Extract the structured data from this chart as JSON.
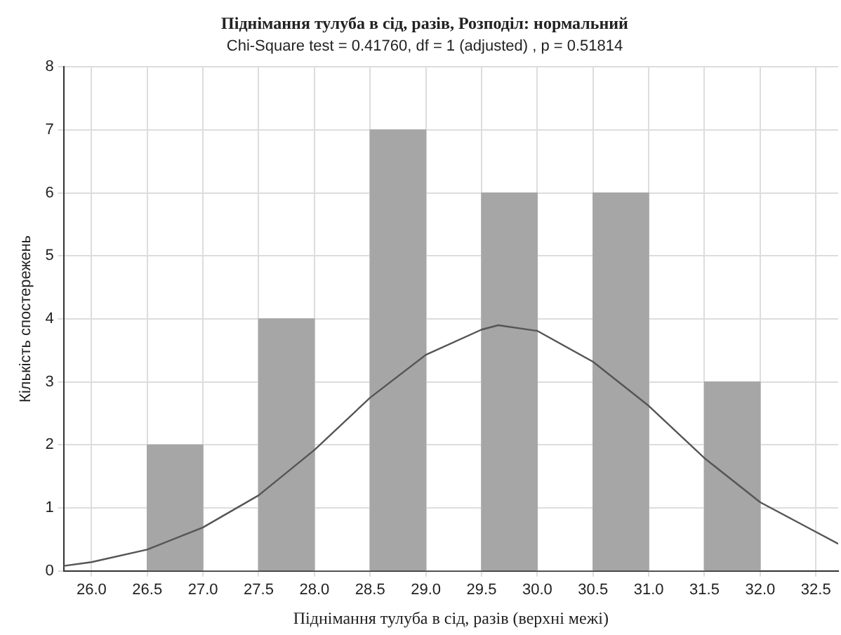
{
  "chart_data": {
    "type": "histogram",
    "title": "Піднімання тулуба в сід, разів, Розподіл: нормальний",
    "subtitle": "Chi-Square test = 0.41760, df = 1 (adjusted) , p = 0.51814",
    "xlabel": "Піднімання тулуба в сід, разів (верхні межі)",
    "ylabel": "Кількість спостережень",
    "bins": [
      26.5,
      27,
      27.5,
      28,
      28.5,
      29,
      29.5,
      30,
      30.5,
      31,
      31.5,
      32
    ],
    "values": [
      2,
      0,
      4,
      0,
      7,
      0,
      6,
      0,
      6,
      0,
      3
    ],
    "color": "#a6a6a6",
    "series": [
      {
        "type": "line",
        "color": "#555555",
        "x": [
          25.75,
          26,
          26.5,
          27,
          27.5,
          28,
          28.5,
          29,
          29.5,
          29.65,
          30,
          30.5,
          31,
          31.5,
          32,
          32.5,
          32.7
        ],
        "values": [
          0.08,
          0.14,
          0.34,
          0.69,
          1.2,
          1.92,
          2.75,
          3.43,
          3.83,
          3.9,
          3.81,
          3.32,
          2.62,
          1.79,
          1.09,
          0.62,
          0.43
        ]
      }
    ],
    "xlim": [
      25.75,
      32.7
    ],
    "xticks": [
      {
        "value": 26,
        "label": "26.0"
      },
      {
        "value": 26.5,
        "label": "26.5"
      },
      {
        "value": 27,
        "label": "27.0"
      },
      {
        "value": 27.5,
        "label": "27.5"
      },
      {
        "value": 28,
        "label": "28.0"
      },
      {
        "value": 28.5,
        "label": "28.5"
      },
      {
        "value": 29,
        "label": "29.0"
      },
      {
        "value": 29.5,
        "label": "29.5"
      },
      {
        "value": 30,
        "label": "30.0"
      },
      {
        "value": 30.5,
        "label": "30.5"
      },
      {
        "value": 31,
        "label": "31.0"
      },
      {
        "value": 31.5,
        "label": "31.5"
      },
      {
        "value": 32,
        "label": "32.0"
      },
      {
        "value": 32.5,
        "label": "32.5"
      }
    ],
    "ylim": [
      0,
      8
    ],
    "yticks": [
      0,
      1,
      2,
      3,
      4,
      5,
      6,
      7,
      8
    ],
    "grid": true,
    "legend": false
  }
}
